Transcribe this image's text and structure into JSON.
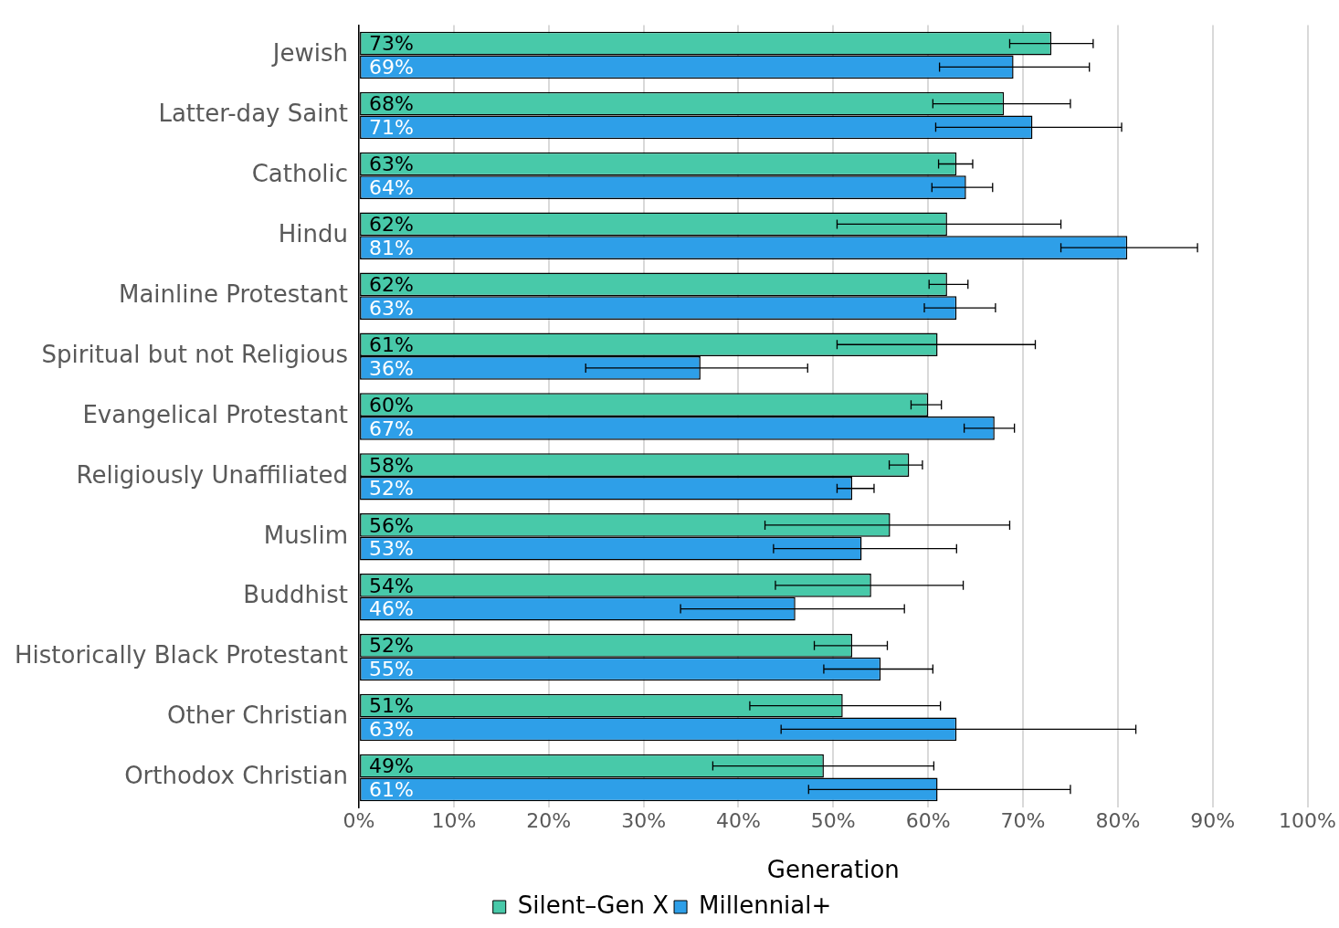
{
  "chart_data": {
    "type": "bar",
    "orientation": "horizontal",
    "xlabel": "Generation",
    "categories": [
      "Jewish",
      "Latter-day Saint",
      "Catholic",
      "Hindu",
      "Mainline Protestant",
      "Spiritual but not Religious",
      "Evangelical Protestant",
      "Religiously Unaffiliated",
      "Muslim",
      "Buddhist",
      "Historically Black Protestant",
      "Other Christian",
      "Orthodox Christian"
    ],
    "series": [
      {
        "name": "Silent–Gen X",
        "color": "#48c9a9",
        "values": [
          73,
          68,
          63,
          62,
          62,
          61,
          60,
          58,
          56,
          54,
          52,
          51,
          49
        ],
        "value_labels": [
          "73%",
          "68%",
          "63%",
          "62%",
          "62%",
          "61%",
          "60%",
          "58%",
          "56%",
          "54%",
          "52%",
          "51%",
          "49%"
        ],
        "errors": [
          [
            68.6,
            77.4
          ],
          [
            60.5,
            75.0
          ],
          [
            61.1,
            64.7
          ],
          [
            50.4,
            74.0
          ],
          [
            60.1,
            64.2
          ],
          [
            50.4,
            71.3
          ],
          [
            58.2,
            61.4
          ],
          [
            55.9,
            59.4
          ],
          [
            42.8,
            68.6
          ],
          [
            43.9,
            63.7
          ],
          [
            48.0,
            55.7
          ],
          [
            41.2,
            61.3
          ],
          [
            37.3,
            60.6
          ]
        ]
      },
      {
        "name": "Millennial+",
        "color": "#2e9fe8",
        "values": [
          69,
          71,
          64,
          81,
          63,
          36,
          67,
          52,
          53,
          46,
          55,
          63,
          61
        ],
        "value_labels": [
          "69%",
          "71%",
          "64%",
          "81%",
          "63%",
          "36%",
          "67%",
          "52%",
          "53%",
          "46%",
          "55%",
          "63%",
          "61%"
        ],
        "errors": [
          [
            61.2,
            77.0
          ],
          [
            60.8,
            80.4
          ],
          [
            60.4,
            66.8
          ],
          [
            74.0,
            88.4
          ],
          [
            59.6,
            67.1
          ],
          [
            23.9,
            47.3
          ],
          [
            63.8,
            69.1
          ],
          [
            50.4,
            54.3
          ],
          [
            43.7,
            63.0
          ],
          [
            33.9,
            57.5
          ],
          [
            49.0,
            60.5
          ],
          [
            44.5,
            81.9
          ],
          [
            47.4,
            75.0
          ]
        ]
      }
    ],
    "xlim": [
      0,
      100
    ],
    "xticks": [
      {
        "value": 0,
        "label": "0%"
      },
      {
        "value": 10,
        "label": "10%"
      },
      {
        "value": 20,
        "label": "20%"
      },
      {
        "value": 30,
        "label": "30%"
      },
      {
        "value": 40,
        "label": "40%"
      },
      {
        "value": 50,
        "label": "50%"
      },
      {
        "value": 60,
        "label": "60%"
      },
      {
        "value": 70,
        "label": "70%"
      },
      {
        "value": 80,
        "label": "80%"
      },
      {
        "value": 90,
        "label": "90%"
      },
      {
        "value": 100,
        "label": "100%"
      }
    ],
    "grid": "x",
    "legend": "bottom"
  }
}
